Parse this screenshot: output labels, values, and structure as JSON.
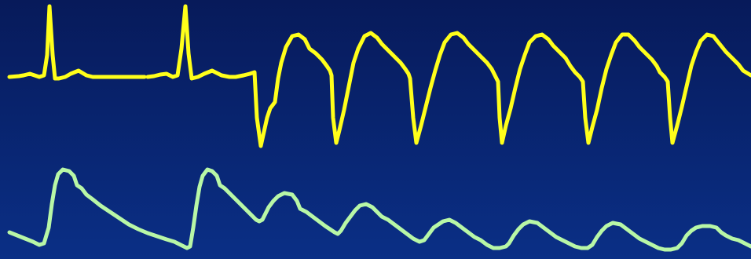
{
  "traces": [
    {
      "name": "ecg-trace",
      "color": "#ffff1a"
    },
    {
      "name": "pressure-trace",
      "color": "#b8f7a6"
    }
  ],
  "colors": {
    "background_top": "#071a5a",
    "background_bottom": "#0a2f86"
  }
}
